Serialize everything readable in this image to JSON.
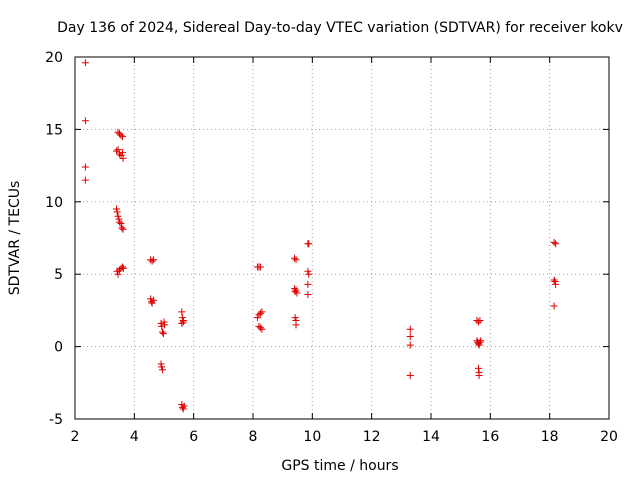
{
  "chart_data": {
    "type": "scatter",
    "title": "Day 136 of 2024, Sidereal Day-to-day VTEC variation (SDTVAR) for receiver kokv",
    "xlabel": "GPS time / hours",
    "ylabel": "SDTVAR / TECUs",
    "xlim": [
      2,
      20
    ],
    "ylim": [
      -5,
      20
    ],
    "xticks": [
      2,
      4,
      6,
      8,
      10,
      12,
      14,
      16,
      18,
      20
    ],
    "yticks": [
      -5,
      0,
      5,
      10,
      15,
      20
    ],
    "grid": true,
    "marker": "plus",
    "color": "#e00000",
    "series": [
      {
        "name": "SDTVAR",
        "points": [
          [
            2.35,
            19.6
          ],
          [
            2.35,
            15.6
          ],
          [
            2.35,
            12.4
          ],
          [
            2.35,
            11.5
          ],
          [
            3.45,
            14.8
          ],
          [
            3.5,
            14.7
          ],
          [
            3.55,
            14.6
          ],
          [
            3.6,
            14.5
          ],
          [
            3.4,
            13.5
          ],
          [
            3.45,
            13.6
          ],
          [
            3.5,
            13.3
          ],
          [
            3.55,
            13.2
          ],
          [
            3.6,
            13.4
          ],
          [
            3.62,
            13.0
          ],
          [
            3.4,
            9.5
          ],
          [
            3.42,
            9.3
          ],
          [
            3.45,
            9.0
          ],
          [
            3.48,
            8.8
          ],
          [
            3.5,
            8.6
          ],
          [
            3.55,
            8.5
          ],
          [
            3.58,
            8.2
          ],
          [
            3.62,
            8.1
          ],
          [
            3.42,
            5.2
          ],
          [
            3.45,
            5.0
          ],
          [
            3.5,
            5.3
          ],
          [
            3.55,
            5.4
          ],
          [
            3.6,
            5.5
          ],
          [
            3.63,
            5.4
          ],
          [
            4.55,
            6.0
          ],
          [
            4.6,
            5.9
          ],
          [
            4.65,
            6.0
          ],
          [
            4.55,
            3.3
          ],
          [
            4.58,
            3.1
          ],
          [
            4.6,
            3.0
          ],
          [
            4.65,
            3.2
          ],
          [
            4.9,
            1.6
          ],
          [
            4.92,
            1.4
          ],
          [
            4.95,
            1.0
          ],
          [
            4.98,
            0.9
          ],
          [
            5.0,
            1.7
          ],
          [
            5.02,
            1.5
          ],
          [
            4.9,
            -1.2
          ],
          [
            4.92,
            -1.4
          ],
          [
            4.95,
            -1.6
          ],
          [
            5.6,
            2.4
          ],
          [
            5.62,
            2.0
          ],
          [
            5.65,
            1.8
          ],
          [
            5.6,
            1.6
          ],
          [
            5.65,
            1.7
          ],
          [
            5.6,
            -4.0
          ],
          [
            5.62,
            -4.2
          ],
          [
            5.65,
            -4.3
          ],
          [
            5.68,
            -4.1
          ],
          [
            8.15,
            5.5
          ],
          [
            8.2,
            5.5
          ],
          [
            8.25,
            5.5
          ],
          [
            8.15,
            2.0
          ],
          [
            8.2,
            2.2
          ],
          [
            8.25,
            2.3
          ],
          [
            8.3,
            2.4
          ],
          [
            8.2,
            1.4
          ],
          [
            8.25,
            1.3
          ],
          [
            8.3,
            1.2
          ],
          [
            9.4,
            6.1
          ],
          [
            9.45,
            6.0
          ],
          [
            9.4,
            4.0
          ],
          [
            9.42,
            3.8
          ],
          [
            9.45,
            3.9
          ],
          [
            9.48,
            3.7
          ],
          [
            9.42,
            2.0
          ],
          [
            9.45,
            1.8
          ],
          [
            9.45,
            1.5
          ],
          [
            9.85,
            7.1
          ],
          [
            9.88,
            7.1
          ],
          [
            9.85,
            5.2
          ],
          [
            9.88,
            5.0
          ],
          [
            9.85,
            4.3
          ],
          [
            9.85,
            3.6
          ],
          [
            13.3,
            1.2
          ],
          [
            13.3,
            0.7
          ],
          [
            13.3,
            0.1
          ],
          [
            13.3,
            -2.0
          ],
          [
            15.55,
            1.8
          ],
          [
            15.6,
            1.7
          ],
          [
            15.65,
            1.8
          ],
          [
            15.55,
            0.4
          ],
          [
            15.58,
            0.3
          ],
          [
            15.6,
            0.2
          ],
          [
            15.62,
            0.1
          ],
          [
            15.65,
            0.3
          ],
          [
            15.68,
            0.4
          ],
          [
            15.6,
            -1.5
          ],
          [
            15.62,
            -1.8
          ],
          [
            15.62,
            -2.0
          ],
          [
            18.15,
            7.2
          ],
          [
            18.2,
            7.1
          ],
          [
            18.15,
            4.6
          ],
          [
            18.18,
            4.5
          ],
          [
            18.2,
            4.3
          ],
          [
            18.15,
            2.8
          ]
        ]
      }
    ]
  }
}
